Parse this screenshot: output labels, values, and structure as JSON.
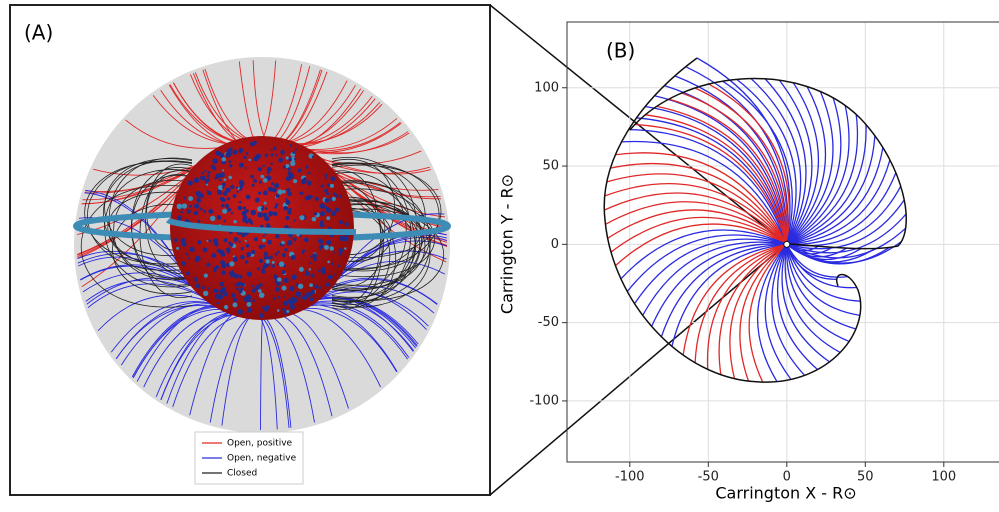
{
  "chart_data": [
    {
      "type": "field-lines-3d",
      "panel_label": "(A)",
      "series": [
        {
          "name": "Open, positive",
          "color": "#e02828"
        },
        {
          "name": "Open, negative",
          "color": "#2a2ae0"
        },
        {
          "name": "Closed",
          "color": "#222222"
        }
      ]
    },
    {
      "type": "spiral-plot",
      "panel_label": "(B)",
      "xlabel": "Carrington X - R⊙",
      "ylabel": "Carrington Y - R⊙",
      "xlim": [
        -140,
        136
      ],
      "ylim": [
        -139,
        142
      ],
      "xticks": [
        -100,
        -50,
        0,
        50,
        100
      ],
      "yticks": [
        -100,
        -50,
        0,
        50,
        100
      ],
      "grid": true
    }
  ]
}
